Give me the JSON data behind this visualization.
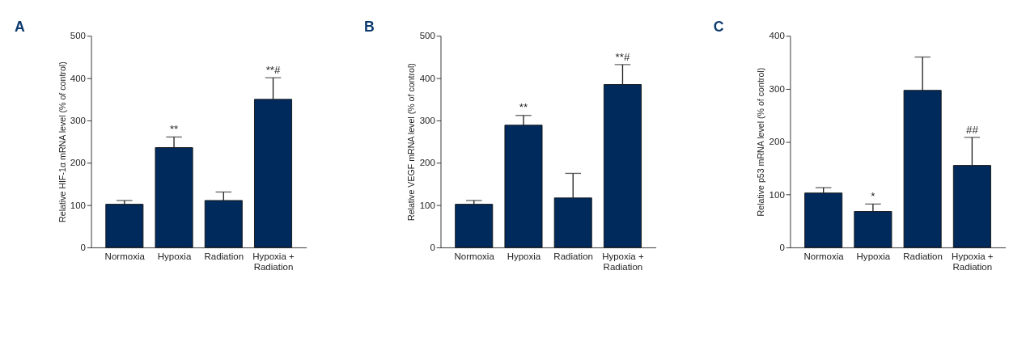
{
  "chart_data": [
    {
      "type": "bar",
      "title": "A",
      "ylabel": "Relative HIF-1α mRNA level (% of control)",
      "categories": [
        "Normoxia",
        "Hypoxia",
        "Radiation",
        "Hypoxia +\nRadiation"
      ],
      "values": [
        102,
        236,
        111,
        350
      ],
      "errors": [
        [
          102,
          111
        ],
        [
          236,
          261
        ],
        [
          111,
          131
        ],
        [
          350,
          401
        ]
      ],
      "value_labels": [
        null,
        "**",
        null,
        "**#"
      ],
      "color": "#002a5c",
      "ylim": [
        0,
        500
      ],
      "yticks": [
        0,
        100,
        200,
        300,
        400,
        500
      ],
      "grid": false
    },
    {
      "type": "bar",
      "title": "B",
      "ylabel": "Relative VEGF mRNA level (% of control)",
      "categories": [
        "Normoxia",
        "Hypoxia",
        "Radiation",
        "Hypoxia +\nRadiation"
      ],
      "values": [
        102,
        289,
        117,
        385
      ],
      "errors": [
        [
          102,
          111
        ],
        [
          289,
          312
        ],
        [
          117,
          175
        ],
        [
          385,
          432
        ]
      ],
      "value_labels": [
        null,
        "**",
        null,
        "**#"
      ],
      "color": "#002a5c",
      "ylim": [
        0,
        500
      ],
      "yticks": [
        0,
        100,
        200,
        300,
        400,
        500
      ],
      "grid": false
    },
    {
      "type": "bar",
      "title": "C",
      "ylabel": "Relative p53 mRNA level (% of control)",
      "categories": [
        "Normoxia",
        "Hypoxia",
        "Radiation",
        "Hypoxia +\nRadiation"
      ],
      "values": [
        103,
        68,
        297,
        155
      ],
      "errors": [
        [
          103,
          113
        ],
        [
          68,
          82
        ],
        [
          297,
          360
        ],
        [
          155,
          208
        ]
      ],
      "value_labels": [
        null,
        "*",
        null,
        "##"
      ],
      "color": "#002a5c",
      "ylim": [
        0,
        400
      ],
      "yticks": [
        0,
        100,
        200,
        300,
        400
      ],
      "grid": false
    }
  ]
}
